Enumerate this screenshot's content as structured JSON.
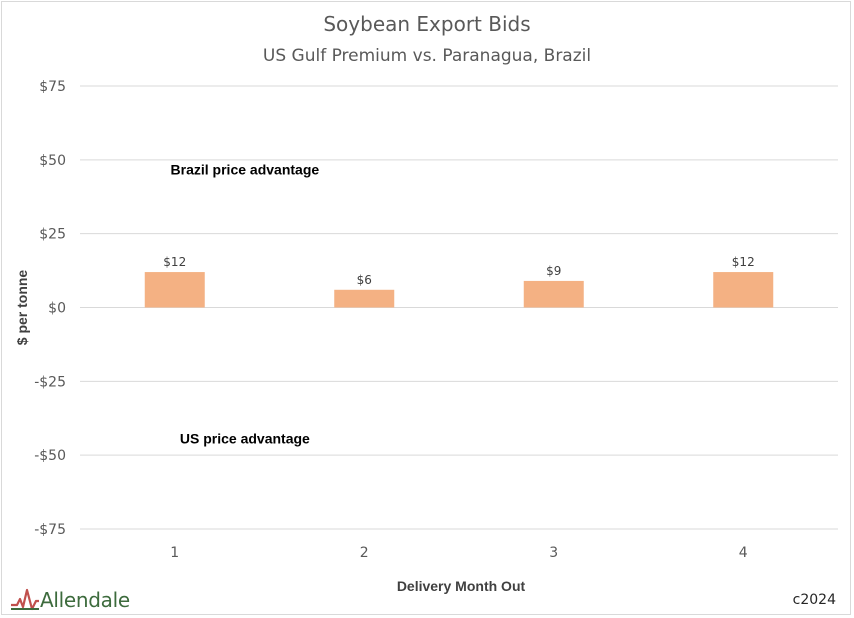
{
  "chart_data": {
    "type": "bar",
    "title": "Soybean Export Bids",
    "subtitle": "US Gulf Premium vs. Paranagua, Brazil",
    "xlabel": "Delivery Month Out",
    "ylabel": "$ per tonne",
    "categories": [
      "1",
      "2",
      "3",
      "4"
    ],
    "values": [
      12,
      6,
      9,
      12
    ],
    "data_labels": [
      "$12",
      "$6",
      "$9",
      "$12"
    ],
    "ylim": [
      -75,
      75
    ],
    "yticks": [
      75,
      50,
      25,
      0,
      -25,
      -50,
      -75
    ],
    "ytick_labels": [
      "$75",
      "$50",
      "$25",
      "$0",
      "-$25",
      "-$50",
      "-$75"
    ],
    "grid": true,
    "bar_color": "#f4b183",
    "annotations": [
      {
        "text": "Brazil price advantage",
        "x": 1.37,
        "y": 45
      },
      {
        "text": "US price advantage",
        "x": 1.37,
        "y": -46
      }
    ]
  },
  "footer": {
    "logo_text": "Allendale",
    "copyright": "c2024"
  }
}
